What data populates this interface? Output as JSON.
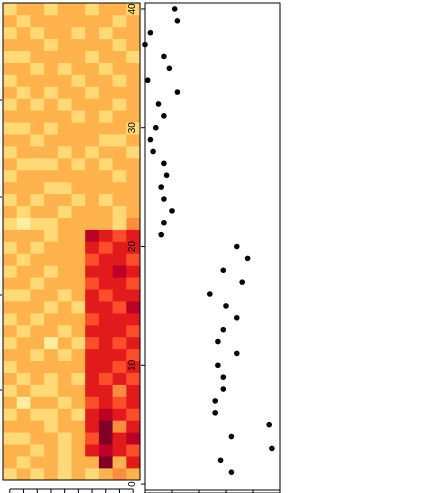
{
  "chart_data": [
    {
      "type": "heatmap",
      "n_rows": 40,
      "n_cols": 10,
      "colors": [
        "#FFFFCC",
        "#FFEDA0",
        "#FED976",
        "#FEB24C",
        "#FD8D3C",
        "#FC4E2A",
        "#E31A1C",
        "#BD0026",
        "#800026"
      ],
      "matrix": [
        [
          2,
          3,
          2,
          3,
          2,
          3,
          2,
          3,
          4,
          3
        ],
        [
          3,
          2,
          3,
          3,
          2,
          3,
          3,
          8,
          3,
          6
        ],
        [
          3,
          3,
          2,
          3,
          2,
          3,
          6,
          7,
          6,
          5
        ],
        [
          2,
          2,
          3,
          3,
          2,
          3,
          5,
          8,
          6,
          7
        ],
        [
          3,
          3,
          3,
          2,
          3,
          3,
          6,
          8,
          4,
          6
        ],
        [
          2,
          3,
          2,
          2,
          3,
          2,
          6,
          7,
          6,
          5
        ],
        [
          3,
          1,
          3,
          3,
          2,
          3,
          5,
          6,
          5,
          6
        ],
        [
          2,
          3,
          2,
          2,
          3,
          3,
          6,
          6,
          4,
          6
        ],
        [
          3,
          2,
          3,
          2,
          3,
          2,
          6,
          5,
          6,
          5
        ],
        [
          2,
          3,
          3,
          3,
          3,
          3,
          6,
          6,
          5,
          6
        ],
        [
          3,
          3,
          2,
          3,
          2,
          3,
          6,
          6,
          6,
          5
        ],
        [
          2,
          3,
          3,
          1,
          3,
          2,
          5,
          6,
          5,
          6
        ],
        [
          3,
          2,
          3,
          3,
          2,
          3,
          6,
          6,
          6,
          5
        ],
        [
          2,
          3,
          2,
          3,
          3,
          3,
          5,
          6,
          6,
          6
        ],
        [
          3,
          3,
          3,
          2,
          3,
          2,
          6,
          6,
          5,
          7
        ],
        [
          2,
          2,
          3,
          3,
          2,
          3,
          6,
          5,
          6,
          6
        ],
        [
          3,
          3,
          2,
          3,
          3,
          3,
          5,
          6,
          6,
          5
        ],
        [
          2,
          3,
          3,
          2,
          3,
          3,
          6,
          6,
          7,
          6
        ],
        [
          3,
          2,
          3,
          3,
          3,
          3,
          5,
          6,
          6,
          5
        ],
        [
          2,
          3,
          2,
          3,
          3,
          3,
          6,
          5,
          6,
          6
        ],
        [
          3,
          3,
          3,
          2,
          3,
          3,
          7,
          6,
          5,
          6
        ],
        [
          2,
          1,
          2,
          2,
          3,
          3,
          3,
          3,
          2,
          4
        ],
        [
          3,
          2,
          3,
          3,
          2,
          3,
          3,
          3,
          2,
          3
        ],
        [
          2,
          3,
          2,
          3,
          3,
          2,
          3,
          2,
          3,
          3
        ],
        [
          3,
          3,
          3,
          2,
          2,
          3,
          3,
          3,
          3,
          3
        ],
        [
          2,
          3,
          3,
          3,
          3,
          3,
          3,
          3,
          2,
          3
        ],
        [
          3,
          2,
          2,
          2,
          3,
          2,
          3,
          2,
          3,
          3
        ],
        [
          2,
          3,
          3,
          3,
          2,
          3,
          2,
          3,
          3,
          2
        ],
        [
          3,
          3,
          2,
          3,
          3,
          3,
          3,
          2,
          2,
          3
        ],
        [
          2,
          2,
          3,
          2,
          3,
          3,
          3,
          3,
          3,
          2
        ],
        [
          3,
          3,
          3,
          3,
          3,
          2,
          3,
          2,
          3,
          3
        ],
        [
          2,
          3,
          2,
          3,
          2,
          3,
          3,
          3,
          2,
          3
        ],
        [
          3,
          2,
          3,
          2,
          3,
          3,
          2,
          3,
          3,
          3
        ],
        [
          2,
          3,
          3,
          3,
          3,
          2,
          3,
          3,
          2,
          3
        ],
        [
          3,
          3,
          2,
          3,
          2,
          3,
          3,
          2,
          3,
          3
        ],
        [
          2,
          2,
          3,
          3,
          3,
          3,
          2,
          3,
          3,
          2
        ],
        [
          3,
          3,
          3,
          2,
          3,
          3,
          3,
          3,
          2,
          3
        ],
        [
          2,
          3,
          2,
          3,
          3,
          2,
          3,
          2,
          3,
          3
        ],
        [
          3,
          2,
          3,
          3,
          3,
          3,
          3,
          3,
          2,
          3
        ],
        [
          2,
          3,
          3,
          2,
          3,
          3,
          2,
          3,
          3,
          2
        ]
      ]
    },
    {
      "type": "scatter",
      "xlim": [
        0,
        5
      ],
      "ylim": [
        -0.5,
        40.5
      ],
      "yticks": [
        0,
        10,
        20,
        30,
        40
      ],
      "grid": false,
      "points": [
        {
          "x": 3.2,
          "y": 1
        },
        {
          "x": 2.8,
          "y": 2
        },
        {
          "x": 4.7,
          "y": 3
        },
        {
          "x": 3.2,
          "y": 4
        },
        {
          "x": 4.6,
          "y": 5
        },
        {
          "x": 2.6,
          "y": 6
        },
        {
          "x": 2.6,
          "y": 7
        },
        {
          "x": 2.9,
          "y": 8
        },
        {
          "x": 2.9,
          "y": 9
        },
        {
          "x": 2.7,
          "y": 10
        },
        {
          "x": 3.4,
          "y": 11
        },
        {
          "x": 2.7,
          "y": 12
        },
        {
          "x": 2.9,
          "y": 13
        },
        {
          "x": 3.4,
          "y": 14
        },
        {
          "x": 3.0,
          "y": 15
        },
        {
          "x": 2.4,
          "y": 16
        },
        {
          "x": 3.6,
          "y": 17
        },
        {
          "x": 2.9,
          "y": 18
        },
        {
          "x": 3.8,
          "y": 19
        },
        {
          "x": 3.4,
          "y": 20
        },
        {
          "x": 0.6,
          "y": 21
        },
        {
          "x": 0.7,
          "y": 22
        },
        {
          "x": 1.0,
          "y": 23
        },
        {
          "x": 0.7,
          "y": 24
        },
        {
          "x": 0.6,
          "y": 25
        },
        {
          "x": 0.8,
          "y": 26
        },
        {
          "x": 0.7,
          "y": 27
        },
        {
          "x": 0.3,
          "y": 28
        },
        {
          "x": 0.2,
          "y": 29
        },
        {
          "x": 0.4,
          "y": 30
        },
        {
          "x": 0.7,
          "y": 31
        },
        {
          "x": 0.5,
          "y": 32
        },
        {
          "x": 1.2,
          "y": 33
        },
        {
          "x": 0.1,
          "y": 34
        },
        {
          "x": 0.9,
          "y": 35
        },
        {
          "x": 0.7,
          "y": 36
        },
        {
          "x": 0.0,
          "y": 37
        },
        {
          "x": 0.2,
          "y": 38
        },
        {
          "x": 1.2,
          "y": 39
        },
        {
          "x": 1.1,
          "y": 40
        }
      ]
    }
  ]
}
